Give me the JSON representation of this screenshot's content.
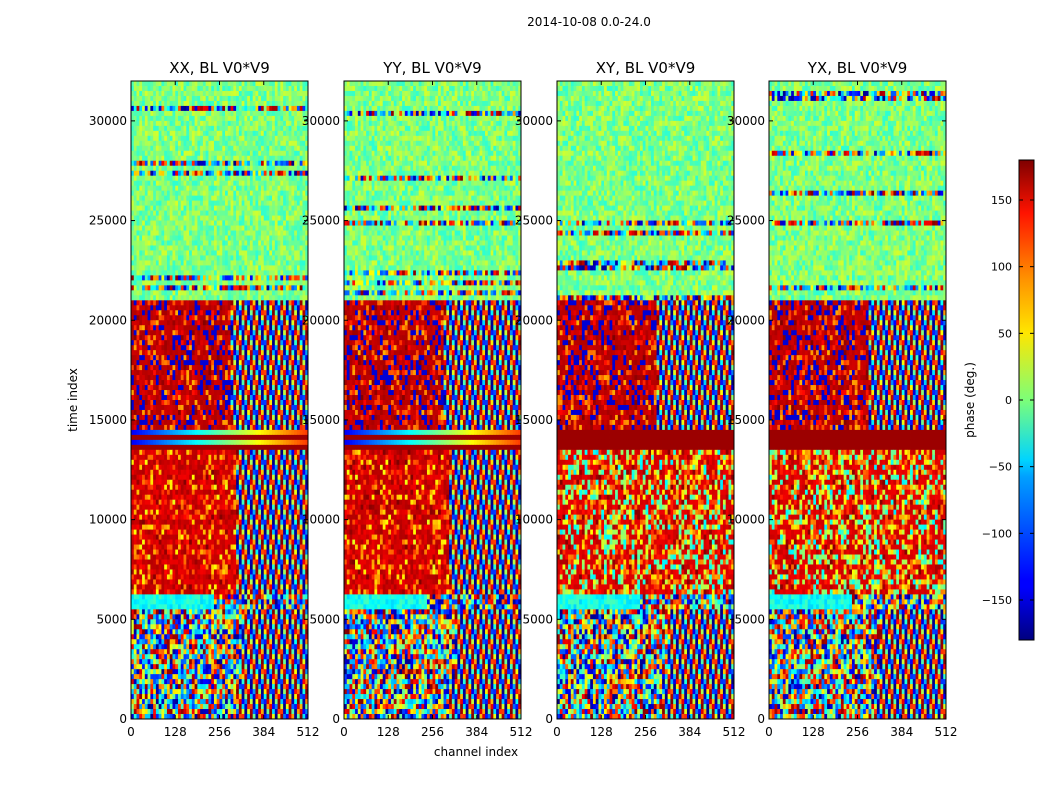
{
  "chart_data": {
    "type": "heatmap",
    "suptitle": "2014-10-08 0.0-24.0",
    "xlabel": "channel index",
    "ylabel": "time index",
    "xlim": [
      0,
      512
    ],
    "ylim": [
      0,
      32000
    ],
    "xticks": [
      0,
      128,
      256,
      384,
      512
    ],
    "yticks": [
      0,
      5000,
      10000,
      15000,
      20000,
      25000,
      30000
    ],
    "colormap": "jet",
    "colorbar": {
      "label": "phase (deg.)",
      "range": [
        -180,
        180
      ],
      "ticks": [
        150,
        100,
        50,
        0,
        -50,
        -100,
        -150
      ],
      "tick_labels": [
        "150",
        "100",
        "50",
        "0",
        "−50",
        "−100",
        "−150"
      ]
    },
    "panels": [
      {
        "name": "xx",
        "title": "XX, BL V0*V9"
      },
      {
        "name": "yy",
        "title": "YY, BL V0*V9"
      },
      {
        "name": "xy",
        "title": "XY, BL V0*V9"
      },
      {
        "name": "yx",
        "title": "YX, BL V0*V9"
      }
    ],
    "time_segments": [
      {
        "start": 0,
        "end": 2000,
        "description": "noisy with fringe patterns at high channels"
      },
      {
        "start": 2000,
        "end": 5500,
        "description": "noise at low channels, strong fringes above channel ~320"
      },
      {
        "start": 5500,
        "end": 6200,
        "description": "cyan-green band (phase near -50)"
      },
      {
        "start": 6200,
        "end": 13500,
        "description": "predominantly red/dark-red phase with fringes at high channels"
      },
      {
        "start": 13500,
        "end": 14500,
        "description": "horizontal band structure"
      },
      {
        "start": 14500,
        "end": 21000,
        "description": "mixed red/blue with fringes at high channels"
      },
      {
        "start": 21000,
        "end": 32000,
        "description": "mostly green (phase near 0) with horizontal noise lines"
      }
    ]
  }
}
